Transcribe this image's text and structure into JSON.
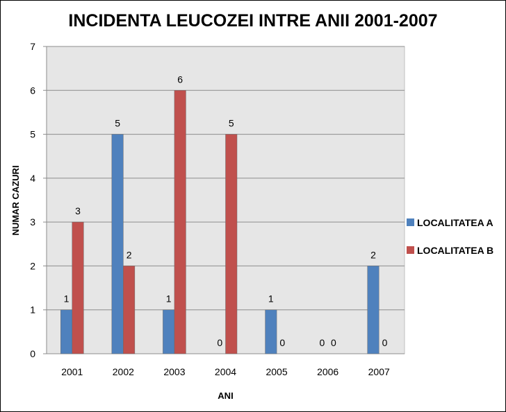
{
  "chart_data": {
    "type": "bar",
    "title": "INCIDENTA LEUCOZEI INTRE ANII 2001-2007",
    "xlabel": "ANI",
    "ylabel": "NUMAR CAZURI",
    "categories": [
      "2001",
      "2002",
      "2003",
      "2004",
      "2005",
      "2006",
      "2007"
    ],
    "series": [
      {
        "name": "LOCALITATEA A",
        "color": "#4f81bd",
        "values": [
          1,
          5,
          1,
          0,
          1,
          0,
          2
        ]
      },
      {
        "name": "LOCALITATEA B",
        "color": "#c0504d",
        "values": [
          3,
          2,
          6,
          5,
          0,
          0,
          0
        ]
      }
    ],
    "ylim": [
      0,
      7
    ],
    "yticks": [
      0,
      1,
      2,
      3,
      4,
      5,
      6,
      7
    ],
    "grid": true,
    "data_labels": true,
    "legend": "right",
    "plot_background": "#e6e6e6"
  }
}
